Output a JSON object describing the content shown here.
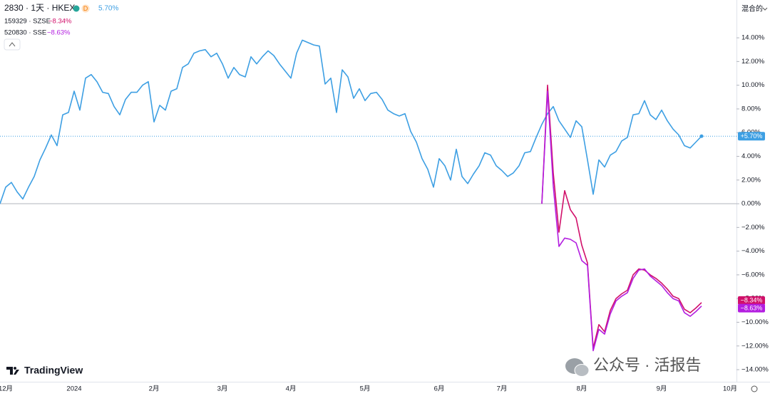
{
  "chart_data": {
    "type": "line",
    "title": "2830 · 1天 · HKEX",
    "interval_badge": "D",
    "scale_mode": "混合的",
    "brand": "TradingView",
    "watermark": "公众号 · 活报告",
    "categories": [
      null,
      "12月",
      null,
      null,
      null,
      null,
      null,
      null,
      null,
      null,
      null,
      null,
      null,
      "2024",
      null,
      null,
      null,
      null,
      null,
      null,
      null,
      null,
      null,
      null,
      null,
      null,
      null,
      "2月",
      null,
      null,
      null,
      null,
      null,
      null,
      null,
      null,
      null,
      null,
      null,
      "3月",
      null,
      null,
      null,
      null,
      null,
      null,
      null,
      null,
      null,
      null,
      null,
      "4月",
      null,
      null,
      null,
      null,
      null,
      null,
      null,
      null,
      null,
      null,
      null,
      null,
      "5月",
      null,
      null,
      null,
      null,
      null,
      null,
      null,
      null,
      null,
      null,
      null,
      null,
      "6月",
      null,
      null,
      null,
      null,
      null,
      null,
      null,
      null,
      null,
      null,
      "7月",
      null,
      null,
      null,
      null,
      null,
      null,
      null,
      null,
      null,
      null,
      null,
      null,
      null,
      "8月",
      null,
      null,
      null,
      null,
      null,
      null,
      null,
      null,
      null,
      null,
      null,
      null,
      null,
      "9月",
      null,
      null,
      null,
      null,
      null,
      null,
      null,
      null,
      null,
      null,
      null,
      "10月",
      null
    ],
    "series": [
      {
        "name": "2830 · 1天 · HKEX",
        "color": "#3d9fe3",
        "legend_label": "5.70%",
        "price_label": "+5.70%",
        "values": [
          0,
          1.4,
          1.8,
          1.0,
          0.4,
          1.4,
          2.3,
          3.7,
          4.7,
          5.8,
          4.9,
          7.5,
          7.7,
          9.5,
          7.9,
          10.6,
          10.9,
          10.3,
          9.4,
          9.3,
          8.2,
          7.5,
          8.8,
          9.4,
          9.4,
          10.0,
          10.3,
          6.9,
          8.3,
          7.9,
          9.5,
          9.7,
          11.5,
          11.8,
          12.7,
          12.9,
          13.0,
          12.4,
          12.7,
          11.8,
          10.6,
          11.5,
          10.9,
          10.7,
          12.4,
          11.8,
          12.4,
          12.9,
          12.5,
          11.8,
          11.2,
          10.6,
          12.7,
          13.8,
          13.6,
          13.4,
          13.3,
          10.1,
          10.6,
          7.7,
          11.3,
          10.7,
          8.9,
          9.7,
          8.7,
          9.3,
          9.4,
          8.8,
          7.9,
          7.6,
          7.4,
          7.6,
          6.1,
          5.2,
          3.8,
          2.9,
          1.4,
          3.8,
          3.2,
          2.0,
          4.6,
          2.3,
          1.7,
          2.5,
          3.2,
          4.3,
          4.1,
          3.2,
          2.8,
          2.3,
          2.6,
          3.2,
          4.3,
          4.4,
          5.6,
          6.7,
          7.6,
          8.2,
          7.0,
          6.3,
          5.6,
          7.0,
          6.5,
          3.7,
          0.8,
          3.7,
          3.1,
          4.1,
          4.4,
          5.3,
          5.6,
          7.5,
          7.6,
          8.7,
          7.5,
          7.1,
          7.9,
          7.0,
          6.3,
          5.8,
          4.9,
          4.7,
          5.2,
          5.7,
          null,
          null,
          null,
          null,
          null,
          null
        ]
      },
      {
        "name": "159329 · SZSE",
        "color": "#d1106a",
        "legend_label": "−8.34%",
        "price_label": "−8.34%",
        "values": [
          null,
          null,
          null,
          null,
          null,
          null,
          null,
          null,
          null,
          null,
          null,
          null,
          null,
          null,
          null,
          null,
          null,
          null,
          null,
          null,
          null,
          null,
          null,
          null,
          null,
          null,
          null,
          null,
          null,
          null,
          null,
          null,
          null,
          null,
          null,
          null,
          null,
          null,
          null,
          null,
          null,
          null,
          null,
          null,
          null,
          null,
          null,
          null,
          null,
          null,
          null,
          null,
          null,
          null,
          null,
          null,
          null,
          null,
          null,
          null,
          null,
          null,
          null,
          null,
          null,
          null,
          null,
          null,
          null,
          null,
          null,
          null,
          null,
          null,
          null,
          null,
          null,
          null,
          null,
          null,
          null,
          null,
          null,
          null,
          null,
          null,
          null,
          null,
          null,
          null,
          null,
          null,
          null,
          null,
          null,
          0,
          10.0,
          2.6,
          -2.4,
          1.1,
          -0.5,
          -1.2,
          -3.5,
          -5.0,
          -12.2,
          -10.2,
          -10.8,
          -9.0,
          -8.0,
          -7.6,
          -7.3,
          -6.0,
          -5.5,
          -5.6,
          -6.0,
          -6.3,
          -6.7,
          -7.2,
          -7.8,
          -8.0,
          -8.9,
          -9.2,
          -8.8,
          -8.34,
          null,
          null,
          null,
          null,
          null,
          null
        ]
      },
      {
        "name": "520830 · SSE",
        "color": "#b31ee0",
        "legend_label": "−8.63%",
        "price_label": "−8.63%",
        "values": [
          null,
          null,
          null,
          null,
          null,
          null,
          null,
          null,
          null,
          null,
          null,
          null,
          null,
          null,
          null,
          null,
          null,
          null,
          null,
          null,
          null,
          null,
          null,
          null,
          null,
          null,
          null,
          null,
          null,
          null,
          null,
          null,
          null,
          null,
          null,
          null,
          null,
          null,
          null,
          null,
          null,
          null,
          null,
          null,
          null,
          null,
          null,
          null,
          null,
          null,
          null,
          null,
          null,
          null,
          null,
          null,
          null,
          null,
          null,
          null,
          null,
          null,
          null,
          null,
          null,
          null,
          null,
          null,
          null,
          null,
          null,
          null,
          null,
          null,
          null,
          null,
          null,
          null,
          null,
          null,
          null,
          null,
          null,
          null,
          null,
          null,
          null,
          null,
          null,
          null,
          null,
          null,
          null,
          null,
          null,
          0,
          9.5,
          1.5,
          -3.6,
          -2.9,
          -3.0,
          -3.3,
          -4.8,
          -5.2,
          -12.4,
          -10.6,
          -11.0,
          -9.3,
          -8.2,
          -7.8,
          -7.5,
          -6.3,
          -5.6,
          -5.5,
          -6.1,
          -6.5,
          -6.9,
          -7.5,
          -8.0,
          -8.2,
          -9.2,
          -9.5,
          -9.1,
          -8.63,
          null,
          null,
          null,
          null,
          null,
          null
        ]
      }
    ],
    "ylim": [
      -14.96,
      17.19
    ],
    "yticks": [
      {
        "value": 14,
        "label": "14.00%"
      },
      {
        "value": 12,
        "label": "12.00%"
      },
      {
        "value": 10,
        "label": "10.00%"
      },
      {
        "value": 8,
        "label": "8.00%"
      },
      {
        "value": 6,
        "label": "6.00%"
      },
      {
        "value": 4,
        "label": "4.00%"
      },
      {
        "value": 2,
        "label": "2.00%"
      },
      {
        "value": 0,
        "label": "0.00%"
      },
      {
        "value": -2,
        "label": "−2.00%"
      },
      {
        "value": -4,
        "label": "−4.00%"
      },
      {
        "value": -6,
        "label": "−6.00%"
      },
      {
        "value": -8,
        "label": "−8.00%"
      },
      {
        "value": -10,
        "label": "−10.00%"
      },
      {
        "value": -12,
        "label": "−12.00%"
      },
      {
        "value": -14,
        "label": "−14.00%"
      }
    ]
  }
}
